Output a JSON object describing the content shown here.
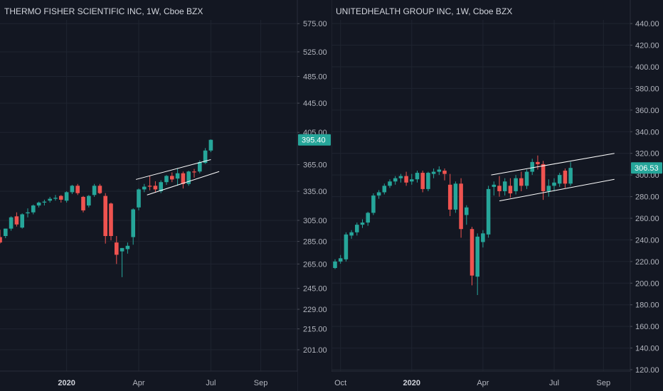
{
  "colors": {
    "background": "#131722",
    "grid": "#1f2430",
    "up": "#26a69a",
    "down": "#ef5350",
    "axis_text": "#b2b5be",
    "trend_line": "#ffffff"
  },
  "chart_data": [
    {
      "type": "candlestick",
      "title": "THERMO FISHER SCIENTIFIC INC, 1W, Cboe BZX",
      "y_scale": "log",
      "ylim": [
        196,
        590
      ],
      "y_ticks": [
        {
          "value": 575,
          "label": "575.00"
        },
        {
          "value": 525,
          "label": "525.00"
        },
        {
          "value": 485,
          "label": "485.00"
        },
        {
          "value": 445,
          "label": "445.00"
        },
        {
          "value": 405,
          "label": "405.00"
        },
        {
          "value": 365,
          "label": "365.00"
        },
        {
          "value": 335,
          "label": "335.00"
        },
        {
          "value": 305,
          "label": "305.00"
        },
        {
          "value": 285,
          "label": "285.00"
        },
        {
          "value": 265,
          "label": "265.00"
        },
        {
          "value": 245,
          "label": "245.00"
        },
        {
          "value": 229,
          "label": "229.00"
        },
        {
          "value": 215,
          "label": "215.00"
        },
        {
          "value": 201,
          "label": "201.00"
        }
      ],
      "x_ticks": [
        {
          "week": 12,
          "label": "2020",
          "bold": true
        },
        {
          "week": 25,
          "label": "Apr",
          "bold": false
        },
        {
          "week": 38,
          "label": "Jul",
          "bold": false
        },
        {
          "week": 47,
          "label": "Sep",
          "bold": false
        }
      ],
      "last_price": {
        "value": 395.4,
        "label": "395.40"
      },
      "candles": [
        {
          "w": 0,
          "o": 289,
          "h": 296,
          "c": 284,
          "l": 283
        },
        {
          "w": 1,
          "o": 290,
          "h": 297,
          "c": 297,
          "l": 288
        },
        {
          "w": 2,
          "o": 297,
          "h": 309,
          "c": 308,
          "l": 295
        },
        {
          "w": 3,
          "o": 309,
          "h": 313,
          "c": 301,
          "l": 299
        },
        {
          "w": 4,
          "o": 298,
          "h": 312,
          "c": 311,
          "l": 297
        },
        {
          "w": 5,
          "o": 312,
          "h": 317,
          "c": 313,
          "l": 308
        },
        {
          "w": 6,
          "o": 313,
          "h": 321,
          "c": 320,
          "l": 311
        },
        {
          "w": 7,
          "o": 320,
          "h": 324,
          "c": 323,
          "l": 318
        },
        {
          "w": 8,
          "o": 323,
          "h": 326,
          "c": 324,
          "l": 320
        },
        {
          "w": 9,
          "o": 325,
          "h": 329,
          "c": 327,
          "l": 323
        },
        {
          "w": 10,
          "o": 327,
          "h": 331,
          "c": 328,
          "l": 325
        },
        {
          "w": 11,
          "o": 330,
          "h": 331,
          "c": 326,
          "l": 323
        },
        {
          "w": 12,
          "o": 325,
          "h": 335,
          "c": 334,
          "l": 323
        },
        {
          "w": 13,
          "o": 334,
          "h": 342,
          "c": 341,
          "l": 332
        },
        {
          "w": 14,
          "o": 341,
          "h": 343,
          "c": 333,
          "l": 331
        },
        {
          "w": 15,
          "o": 329,
          "h": 330,
          "c": 315,
          "l": 313
        },
        {
          "w": 16,
          "o": 320,
          "h": 331,
          "c": 330,
          "l": 318
        },
        {
          "w": 17,
          "o": 331,
          "h": 343,
          "c": 341,
          "l": 329
        },
        {
          "w": 18,
          "o": 341,
          "h": 343,
          "c": 333,
          "l": 332
        },
        {
          "w": 19,
          "o": 330,
          "h": 333,
          "c": 290,
          "l": 283
        },
        {
          "w": 20,
          "o": 322,
          "h": 323,
          "c": 290,
          "l": 286
        },
        {
          "w": 21,
          "o": 284,
          "h": 290,
          "c": 273,
          "l": 265
        },
        {
          "w": 22,
          "o": 276,
          "h": 279,
          "c": 279,
          "l": 254
        },
        {
          "w": 23,
          "o": 278,
          "h": 284,
          "c": 281,
          "l": 274
        },
        {
          "w": 24,
          "o": 289,
          "h": 317,
          "c": 316,
          "l": 282
        },
        {
          "w": 25,
          "o": 318,
          "h": 338,
          "c": 337,
          "l": 315
        },
        {
          "w": 26,
          "o": 337,
          "h": 343,
          "c": 340,
          "l": 334
        },
        {
          "w": 27,
          "o": 341,
          "h": 352,
          "c": 340,
          "l": 336
        },
        {
          "w": 28,
          "o": 341,
          "h": 346,
          "c": 337,
          "l": 334
        },
        {
          "w": 29,
          "o": 335,
          "h": 347,
          "c": 345,
          "l": 333
        },
        {
          "w": 30,
          "o": 345,
          "h": 353,
          "c": 352,
          "l": 342
        },
        {
          "w": 31,
          "o": 352,
          "h": 356,
          "c": 348,
          "l": 345
        },
        {
          "w": 32,
          "o": 349,
          "h": 361,
          "c": 355,
          "l": 341
        },
        {
          "w": 33,
          "o": 355,
          "h": 357,
          "c": 343,
          "l": 338
        },
        {
          "w": 34,
          "o": 343,
          "h": 358,
          "c": 357,
          "l": 341
        },
        {
          "w": 35,
          "o": 357,
          "h": 360,
          "c": 356,
          "l": 350
        },
        {
          "w": 36,
          "o": 357,
          "h": 370,
          "c": 368,
          "l": 355
        },
        {
          "w": 37,
          "o": 367,
          "h": 385,
          "c": 382,
          "l": 366
        },
        {
          "w": 38,
          "o": 382,
          "h": 396,
          "c": 395.4,
          "l": 380
        }
      ],
      "trendlines": [
        {
          "w1": 24.5,
          "v1": 348,
          "w2": 38,
          "v2": 371
        },
        {
          "w1": 26.5,
          "v1": 331,
          "w2": 39.5,
          "v2": 357
        }
      ]
    },
    {
      "type": "candlestick",
      "title": "UNITEDHEALTH GROUP INC, 1W, Cboe BZX",
      "y_scale": "linear",
      "ylim": [
        120,
        446
      ],
      "y_ticks": [
        {
          "value": 440,
          "label": "440.00"
        },
        {
          "value": 420,
          "label": "420.00"
        },
        {
          "value": 400,
          "label": "400.00"
        },
        {
          "value": 380,
          "label": "380.00"
        },
        {
          "value": 360,
          "label": "360.00"
        },
        {
          "value": 340,
          "label": "340.00"
        },
        {
          "value": 320,
          "label": "320.00"
        },
        {
          "value": 300,
          "label": "300.00"
        },
        {
          "value": 280,
          "label": "280.00"
        },
        {
          "value": 260,
          "label": "260.00"
        },
        {
          "value": 240,
          "label": "240.00"
        },
        {
          "value": 220,
          "label": "220.00"
        },
        {
          "value": 200,
          "label": "200.00"
        },
        {
          "value": 180,
          "label": "180.00"
        },
        {
          "value": 160,
          "label": "160.00"
        },
        {
          "value": 140,
          "label": "140.00"
        },
        {
          "value": 120,
          "label": "120.00"
        }
      ],
      "x_ticks": [
        {
          "week": 1,
          "label": "Oct",
          "bold": false
        },
        {
          "week": 14,
          "label": "2020",
          "bold": true
        },
        {
          "week": 27,
          "label": "Apr",
          "bold": false
        },
        {
          "week": 40,
          "label": "Jul",
          "bold": false
        },
        {
          "week": 49,
          "label": "Sep",
          "bold": false
        }
      ],
      "last_price": {
        "value": 306.53,
        "label": "306.53"
      },
      "candles": [
        {
          "w": 0,
          "o": 214,
          "h": 222,
          "c": 220,
          "l": 213
        },
        {
          "w": 1,
          "o": 220,
          "h": 226,
          "c": 223,
          "l": 218
        },
        {
          "w": 2,
          "o": 222,
          "h": 247,
          "c": 245,
          "l": 220
        },
        {
          "w": 3,
          "o": 244,
          "h": 249,
          "c": 247,
          "l": 241
        },
        {
          "w": 4,
          "o": 247,
          "h": 256,
          "c": 254,
          "l": 244
        },
        {
          "w": 5,
          "o": 254,
          "h": 259,
          "c": 256,
          "l": 251
        },
        {
          "w": 6,
          "o": 256,
          "h": 266,
          "c": 265,
          "l": 253
        },
        {
          "w": 7,
          "o": 265,
          "h": 283,
          "c": 281,
          "l": 263
        },
        {
          "w": 8,
          "o": 281,
          "h": 286,
          "c": 284,
          "l": 278
        },
        {
          "w": 9,
          "o": 284,
          "h": 292,
          "c": 290,
          "l": 282
        },
        {
          "w": 10,
          "o": 290,
          "h": 296,
          "c": 294,
          "l": 288
        },
        {
          "w": 11,
          "o": 294,
          "h": 299,
          "c": 297,
          "l": 291
        },
        {
          "w": 12,
          "o": 297,
          "h": 301,
          "c": 299,
          "l": 293
        },
        {
          "w": 13,
          "o": 299,
          "h": 303,
          "c": 293,
          "l": 290
        },
        {
          "w": 14,
          "o": 294,
          "h": 301,
          "c": 296,
          "l": 291
        },
        {
          "w": 15,
          "o": 296,
          "h": 304,
          "c": 302,
          "l": 293
        },
        {
          "w": 16,
          "o": 302,
          "h": 304,
          "c": 287,
          "l": 284
        },
        {
          "w": 17,
          "o": 287,
          "h": 303,
          "c": 302,
          "l": 285
        },
        {
          "w": 18,
          "o": 301,
          "h": 306,
          "c": 303,
          "l": 297
        },
        {
          "w": 19,
          "o": 303,
          "h": 308,
          "c": 305,
          "l": 300
        },
        {
          "w": 20,
          "o": 304,
          "h": 306,
          "c": 301,
          "l": 295
        },
        {
          "w": 21,
          "o": 291,
          "h": 301,
          "c": 268,
          "l": 262
        },
        {
          "w": 22,
          "o": 268,
          "h": 294,
          "c": 292,
          "l": 265
        },
        {
          "w": 23,
          "o": 292,
          "h": 297,
          "c": 250,
          "l": 242
        },
        {
          "w": 24,
          "o": 263,
          "h": 272,
          "c": 270,
          "l": 254
        },
        {
          "w": 25,
          "o": 250,
          "h": 252,
          "c": 207,
          "l": 198
        },
        {
          "w": 26,
          "o": 206,
          "h": 246,
          "c": 243,
          "l": 189
        },
        {
          "w": 27,
          "o": 238,
          "h": 249,
          "c": 246,
          "l": 233
        },
        {
          "w": 28,
          "o": 245,
          "h": 290,
          "c": 287,
          "l": 242
        },
        {
          "w": 29,
          "o": 289,
          "h": 294,
          "c": 291,
          "l": 281
        },
        {
          "w": 30,
          "o": 290,
          "h": 299,
          "c": 285,
          "l": 280
        },
        {
          "w": 31,
          "o": 285,
          "h": 297,
          "c": 294,
          "l": 281
        },
        {
          "w": 32,
          "o": 290,
          "h": 297,
          "c": 283,
          "l": 279
        },
        {
          "w": 33,
          "o": 285,
          "h": 300,
          "c": 297,
          "l": 282
        },
        {
          "w": 34,
          "o": 297,
          "h": 303,
          "c": 290,
          "l": 285
        },
        {
          "w": 35,
          "o": 290,
          "h": 305,
          "c": 303,
          "l": 287
        },
        {
          "w": 36,
          "o": 303,
          "h": 315,
          "c": 312,
          "l": 300
        },
        {
          "w": 37,
          "o": 312,
          "h": 318,
          "c": 310,
          "l": 305
        },
        {
          "w": 38,
          "o": 310,
          "h": 313,
          "c": 285,
          "l": 277
        },
        {
          "w": 39,
          "o": 285,
          "h": 296,
          "c": 290,
          "l": 280
        },
        {
          "w": 40,
          "o": 290,
          "h": 297,
          "c": 293,
          "l": 285
        },
        {
          "w": 41,
          "o": 292,
          "h": 302,
          "c": 300,
          "l": 289
        },
        {
          "w": 42,
          "o": 304,
          "h": 306,
          "c": 292,
          "l": 288
        },
        {
          "w": 43,
          "o": 292,
          "h": 312,
          "c": 306.53,
          "l": 290
        }
      ],
      "trendlines": [
        {
          "w1": 28.5,
          "v1": 300,
          "w2": 51,
          "v2": 320
        },
        {
          "w1": 30,
          "v1": 276,
          "w2": 51,
          "v2": 296
        }
      ]
    }
  ]
}
